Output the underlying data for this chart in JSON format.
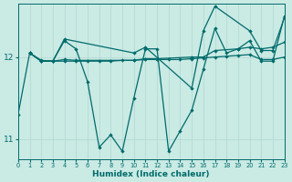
{
  "xlabel": "Humidex (Indice chaleur)",
  "background_color": "#caeae4",
  "line_color": "#006b6b",
  "grid_color": "#b0d8d0",
  "xlim": [
    0,
    23
  ],
  "ylim": [
    10.75,
    12.65
  ],
  "yticks": [
    11,
    12
  ],
  "xticks": [
    0,
    1,
    2,
    3,
    4,
    5,
    6,
    7,
    8,
    9,
    10,
    11,
    12,
    13,
    14,
    15,
    16,
    17,
    18,
    19,
    20,
    21,
    22,
    23
  ],
  "series": [
    {
      "x": [
        0,
        1,
        2,
        3,
        4,
        5,
        6,
        7,
        8,
        9,
        10,
        11,
        12,
        13,
        14,
        15,
        16,
        17,
        18,
        19,
        20,
        21,
        22,
        23
      ],
      "y": [
        11.3,
        12.05,
        11.95,
        11.95,
        12.2,
        12.1,
        11.7,
        10.9,
        11.05,
        10.85,
        11.5,
        12.1,
        12.1,
        10.85,
        11.1,
        11.35,
        11.85,
        12.35,
        12.05,
        12.1,
        12.2,
        11.95,
        11.95,
        12.5
      ]
    },
    {
      "x": [
        1,
        2,
        3,
        4,
        10,
        11,
        15,
        16,
        17,
        20,
        21,
        22,
        23
      ],
      "y": [
        12.05,
        11.95,
        11.95,
        12.22,
        12.05,
        12.12,
        11.62,
        12.32,
        12.62,
        12.32,
        12.08,
        12.08,
        12.48
      ]
    },
    {
      "x": [
        1,
        2,
        3,
        4,
        5,
        10,
        11,
        12,
        15,
        16,
        17,
        19,
        20,
        21,
        22,
        23
      ],
      "y": [
        12.05,
        11.95,
        11.95,
        11.97,
        11.96,
        11.96,
        11.98,
        11.98,
        12.0,
        12.0,
        12.08,
        12.1,
        12.12,
        12.1,
        12.12,
        12.18
      ]
    },
    {
      "x": [
        1,
        2,
        3,
        4,
        5,
        6,
        7,
        8,
        9,
        10,
        11,
        12,
        13,
        14,
        15,
        16,
        17,
        18,
        19,
        20,
        21,
        22,
        23
      ],
      "y": [
        12.05,
        11.96,
        11.95,
        11.95,
        11.95,
        11.95,
        11.95,
        11.95,
        11.96,
        11.96,
        11.97,
        11.97,
        11.97,
        11.97,
        11.98,
        11.99,
        12.0,
        12.01,
        12.02,
        12.03,
        11.97,
        11.97,
        12.0
      ]
    }
  ]
}
